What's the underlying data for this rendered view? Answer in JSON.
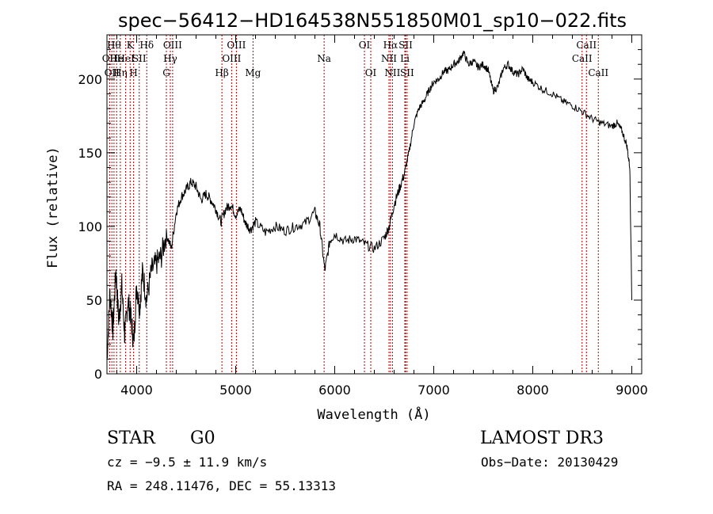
{
  "chart_data": {
    "type": "line",
    "title": "spec−56412−HD164538N551850M01_sp10−022.fits",
    "xlabel": "Wavelength (Å)",
    "ylabel": "Flux (relative)",
    "xlim": [
      3700,
      9100
    ],
    "ylim": [
      0,
      230
    ],
    "x_ticks": [
      4000,
      5000,
      6000,
      7000,
      8000,
      9000
    ],
    "y_ticks": [
      0,
      50,
      100,
      150,
      200
    ],
    "grid": false,
    "legend": "none",
    "series": [
      {
        "color": "#000000",
        "points": [
          [
            3700,
            10
          ],
          [
            3730,
            55
          ],
          [
            3760,
            30
          ],
          [
            3790,
            70
          ],
          [
            3820,
            35
          ],
          [
            3850,
            60
          ],
          [
            3880,
            25
          ],
          [
            3910,
            50
          ],
          [
            3940,
            40
          ],
          [
            3970,
            20
          ],
          [
            4000,
            60
          ],
          [
            4030,
            45
          ],
          [
            4060,
            70
          ],
          [
            4100,
            50
          ],
          [
            4150,
            70
          ],
          [
            4200,
            75
          ],
          [
            4250,
            80
          ],
          [
            4300,
            95
          ],
          [
            4350,
            85
          ],
          [
            4400,
            110
          ],
          [
            4450,
            120
          ],
          [
            4500,
            125
          ],
          [
            4550,
            130
          ],
          [
            4600,
            127
          ],
          [
            4650,
            118
          ],
          [
            4700,
            122
          ],
          [
            4750,
            118
          ],
          [
            4800,
            112
          ],
          [
            4850,
            103
          ],
          [
            4900,
            112
          ],
          [
            4950,
            115
          ],
          [
            5000,
            108
          ],
          [
            5050,
            112
          ],
          [
            5100,
            102
          ],
          [
            5150,
            98
          ],
          [
            5200,
            103
          ],
          [
            5300,
            96
          ],
          [
            5400,
            100
          ],
          [
            5500,
            97
          ],
          [
            5600,
            100
          ],
          [
            5700,
            102
          ],
          [
            5800,
            110
          ],
          [
            5850,
            100
          ],
          [
            5900,
            70
          ],
          [
            5950,
            90
          ],
          [
            6000,
            95
          ],
          [
            6100,
            90
          ],
          [
            6200,
            92
          ],
          [
            6300,
            88
          ],
          [
            6400,
            85
          ],
          [
            6500,
            92
          ],
          [
            6550,
            100
          ],
          [
            6600,
            115
          ],
          [
            6650,
            125
          ],
          [
            6700,
            135
          ],
          [
            6750,
            150
          ],
          [
            6800,
            170
          ],
          [
            6850,
            180
          ],
          [
            6900,
            185
          ],
          [
            6950,
            192
          ],
          [
            7000,
            198
          ],
          [
            7050,
            200
          ],
          [
            7100,
            205
          ],
          [
            7150,
            206
          ],
          [
            7200,
            210
          ],
          [
            7250,
            212
          ],
          [
            7300,
            218
          ],
          [
            7350,
            210
          ],
          [
            7400,
            212
          ],
          [
            7450,
            208
          ],
          [
            7500,
            210
          ],
          [
            7550,
            206
          ],
          [
            7600,
            192
          ],
          [
            7650,
            195
          ],
          [
            7700,
            207
          ],
          [
            7750,
            210
          ],
          [
            7800,
            205
          ],
          [
            7850,
            203
          ],
          [
            7900,
            207
          ],
          [
            7950,
            200
          ],
          [
            8000,
            198
          ],
          [
            8100,
            193
          ],
          [
            8200,
            190
          ],
          [
            8300,
            185
          ],
          [
            8400,
            182
          ],
          [
            8500,
            178
          ],
          [
            8600,
            173
          ],
          [
            8700,
            170
          ],
          [
            8800,
            168
          ],
          [
            8850,
            170
          ],
          [
            8900,
            165
          ],
          [
            8950,
            155
          ],
          [
            8980,
            140
          ],
          [
            9000,
            50
          ]
        ]
      }
    ],
    "spectral_lines": [
      {
        "x": 3727,
        "label": "OII",
        "row": 2
      },
      {
        "x": 3750,
        "label": "OII",
        "row": 3
      },
      {
        "x": 3771,
        "label": "Hθ",
        "row": 1
      },
      {
        "x": 3798,
        "label": "He",
        "row": 2
      },
      {
        "x": 3835,
        "label": "Hη",
        "row": 3
      },
      {
        "x": 3889,
        "label": "HeI",
        "row": 2
      },
      {
        "x": 3934,
        "label": "K",
        "row": 1
      },
      {
        "x": 3969,
        "label": "H",
        "row": 3
      },
      {
        "x": 4026,
        "label": "SII",
        "row": 2
      },
      {
        "x": 4102,
        "label": "Hδ",
        "row": 1
      },
      {
        "x": 4300,
        "label": "G",
        "row": 3
      },
      {
        "x": 4340,
        "label": "Hγ",
        "row": 2
      },
      {
        "x": 4363,
        "label": "OIII",
        "row": 1
      },
      {
        "x": 4861,
        "label": "Hβ",
        "row": 3
      },
      {
        "x": 4959,
        "label": "OIII",
        "row": 2
      },
      {
        "x": 5007,
        "label": "OIII",
        "row": 1
      },
      {
        "x": 5175,
        "label": "Mg",
        "row": 3
      },
      {
        "x": 5893,
        "label": "Na",
        "row": 2
      },
      {
        "x": 6300,
        "label": "OI",
        "row": 1
      },
      {
        "x": 6364,
        "label": "OI",
        "row": 3
      },
      {
        "x": 6548,
        "label": "NII",
        "row": 2
      },
      {
        "x": 6563,
        "label": "Hα",
        "row": 1
      },
      {
        "x": 6583,
        "label": "NII",
        "row": 3
      },
      {
        "x": 6708,
        "label": "Li",
        "row": 2
      },
      {
        "x": 6716,
        "label": "SII",
        "row": 1
      },
      {
        "x": 6731,
        "label": "SII",
        "row": 3
      },
      {
        "x": 8498,
        "label": "CaII",
        "row": 2
      },
      {
        "x": 8542,
        "label": "CaII",
        "row": 1
      },
      {
        "x": 8662,
        "label": "CaII",
        "row": 3
      }
    ]
  },
  "info": {
    "object_class": "STAR",
    "subclass": "G0",
    "survey": "LAMOST DR3",
    "redshift_text": "cz = −9.5 ± 11.9 km/s",
    "obs_date_text": "Obs−Date: 20130429",
    "coords_text": "RA = 248.11476, DEC =  55.13313"
  }
}
